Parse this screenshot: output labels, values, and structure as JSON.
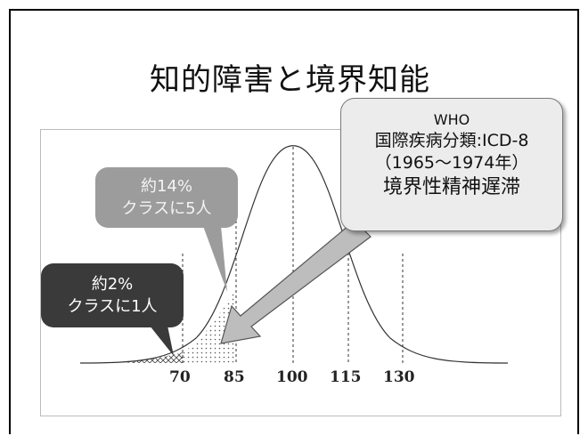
{
  "slide": {
    "title": "知的障害と境界知能"
  },
  "callouts": {
    "who": {
      "line1": "WHO",
      "line2": "国際疾病分類:ICD-8",
      "line3": "（1965～1974年）",
      "line4": "境界性精神遅滞"
    },
    "pct14": {
      "line1": "約14%",
      "line2": "クラスに5人"
    },
    "pct2": {
      "line1": "約2%",
      "line2": "クラスに1人"
    }
  },
  "axis": {
    "ticks": [
      "70",
      "85",
      "100",
      "115",
      "130"
    ]
  },
  "colors": {
    "who_box": "#ececec",
    "pct14_box": "#9c9c9c",
    "pct2_box": "#3a3a3a",
    "arrow": "#bdbdbd"
  }
}
